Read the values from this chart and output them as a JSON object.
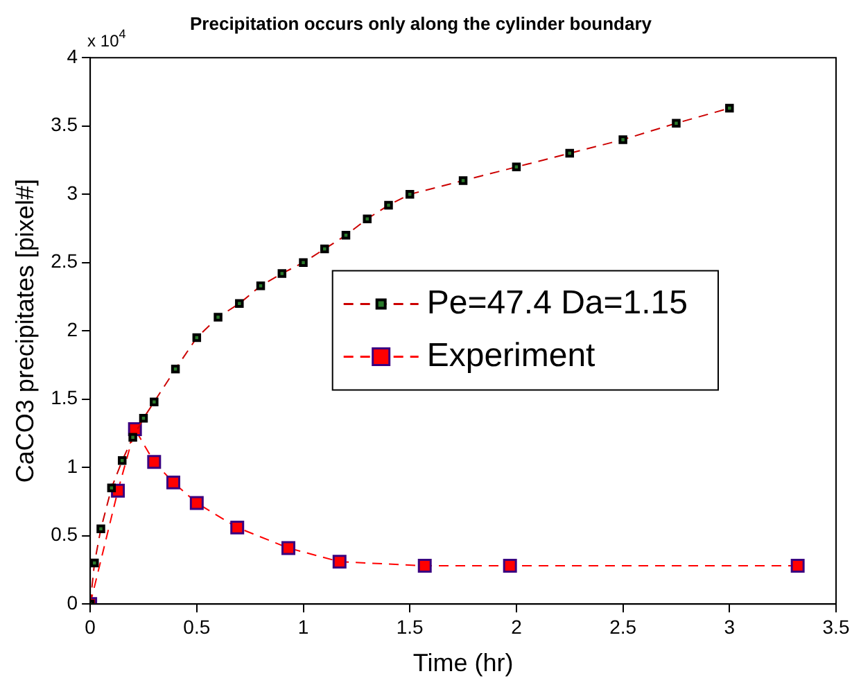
{
  "chart_data": {
    "type": "line",
    "title": "Precipitation occurs only along the cylinder boundary",
    "xlabel": "Time (hr)",
    "ylabel": "CaCO3 precipitates [pixel#]",
    "xlim": [
      0,
      3.5
    ],
    "xticks": [
      0,
      0.5,
      1,
      1.5,
      2,
      2.5,
      3,
      3.5
    ],
    "ylim": [
      0,
      4
    ],
    "yticks": [
      0,
      0.5,
      1,
      1.5,
      2,
      2.5,
      3,
      3.5,
      4
    ],
    "annotations": [
      "x 10$^{4}$"
    ],
    "legend": "right",
    "grid": false,
    "line_style": "dashed",
    "marker": "square",
    "series": [
      {
        "name": "Pe=47.4 Da=1.15",
        "color": "#000000",
        "x": [
          0,
          0.02,
          0.05,
          0.1,
          0.15,
          0.2,
          0.25,
          0.3,
          0.4,
          0.5,
          0.6,
          0.7,
          0.8,
          0.9,
          1.0,
          1.1,
          1.2,
          1.3,
          1.4,
          1.5,
          1.75,
          2.0,
          2.25,
          2.5,
          2.75,
          3.0
        ],
        "values": [
          0,
          0.3,
          0.55,
          0.85,
          1.05,
          1.22,
          1.36,
          1.48,
          1.72,
          1.95,
          2.1,
          2.2,
          2.33,
          2.42,
          2.5,
          2.6,
          2.7,
          2.82,
          2.92,
          3.0,
          3.1,
          3.2,
          3.3,
          3.4,
          3.52,
          3.63
        ]
      },
      {
        "name": "Experiment",
        "color": "#ff0000",
        "x": [
          0,
          0.13,
          0.21,
          0.3,
          0.39,
          0.5,
          0.69,
          0.93,
          1.17,
          1.57,
          1.97,
          3.32
        ],
        "values": [
          0,
          0.83,
          1.28,
          1.04,
          0.89,
          0.74,
          0.56,
          0.41,
          0.31,
          0.28,
          0.28,
          0.28
        ]
      }
    ]
  }
}
